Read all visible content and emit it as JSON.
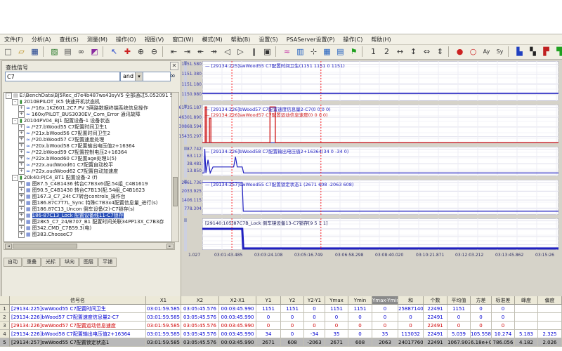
{
  "menu": {
    "items": [
      "文件(F)",
      "分析(A)",
      "查找(S)",
      "测量(M)",
      "操作(O)",
      "视图(V)",
      "窗口(W)",
      "模式(M)",
      "帮助(B)",
      "设置(S)",
      "PSAServer设置(P)",
      "操作(C)",
      "帮助(H)"
    ]
  },
  "toolbar": {
    "icons": [
      {
        "name": "new-file",
        "glyph": "□",
        "color": "#555"
      },
      {
        "name": "open-folder",
        "glyph": "▱",
        "color": "#b8860b"
      },
      {
        "name": "save",
        "glyph": "▦",
        "color": "#1a3c8c"
      },
      {
        "sep": true
      },
      {
        "name": "export",
        "glyph": "▨",
        "color": "#2a7a2a"
      },
      {
        "name": "print",
        "glyph": "▤",
        "color": "#555"
      },
      {
        "name": "search-binoculars",
        "glyph": "∞",
        "color": "#222"
      },
      {
        "name": "color-palette",
        "glyph": "◩",
        "color": "#8a2aa0"
      },
      {
        "sep": true
      },
      {
        "name": "cursor-pointer",
        "glyph": "↖",
        "color": "#2244cc"
      },
      {
        "name": "marker-add",
        "glyph": "✚",
        "color": "#cc2222"
      },
      {
        "name": "zoom-in",
        "glyph": "⊕",
        "color": "#333"
      },
      {
        "name": "zoom-out",
        "glyph": "⊖",
        "color": "#333"
      },
      {
        "sep": true
      },
      {
        "name": "cursor-left",
        "glyph": "⇤",
        "color": "#333"
      },
      {
        "name": "cursor-right",
        "glyph": "⇥",
        "color": "#333"
      },
      {
        "name": "step-back",
        "glyph": "↞",
        "color": "#333"
      },
      {
        "name": "step-forward",
        "glyph": "↠",
        "color": "#333"
      },
      {
        "name": "prev-point",
        "glyph": "◁",
        "color": "#333"
      },
      {
        "name": "next-point",
        "glyph": "▷",
        "color": "#333"
      },
      {
        "name": "pause",
        "glyph": "‖",
        "color": "#333"
      },
      {
        "name": "stop",
        "glyph": "▣",
        "color": "#333"
      },
      {
        "sep": true
      },
      {
        "name": "curve-tool",
        "glyph": "≈",
        "color": "#c020a0"
      },
      {
        "name": "bar-chart",
        "glyph": "▥",
        "color": "#2060c0"
      },
      {
        "name": "crosshair",
        "glyph": "⊹",
        "color": "#333"
      },
      {
        "name": "grid-view",
        "glyph": "▦",
        "color": "#2060c0"
      },
      {
        "name": "table-view",
        "glyph": "▤",
        "color": "#2060c0"
      },
      {
        "name": "flag",
        "glyph": "⚑",
        "color": "#20a020"
      },
      {
        "sep": true
      },
      {
        "name": "view-one",
        "glyph": "1",
        "color": "#333"
      },
      {
        "name": "view-two",
        "glyph": "2",
        "color": "#333"
      },
      {
        "name": "h-expand",
        "glyph": "↔",
        "color": "#333"
      },
      {
        "name": "v-expand",
        "glyph": "↕",
        "color": "#333"
      },
      {
        "name": "fit-width",
        "glyph": "⇔",
        "color": "#333"
      },
      {
        "name": "fit-height",
        "glyph": "⇕",
        "color": "#333"
      },
      {
        "sep": true
      },
      {
        "name": "record",
        "glyph": "●",
        "color": "#cc2222"
      },
      {
        "name": "record-outline",
        "glyph": "○",
        "color": "#cc2222"
      },
      {
        "name": "ay-tool",
        "glyph": "Ay",
        "color": "#333"
      },
      {
        "name": "sy-tool",
        "glyph": "Sy",
        "color": "#333"
      },
      {
        "sep": true
      },
      {
        "name": "analysis-blue",
        "glyph": "▙",
        "color": "#2040c0"
      },
      {
        "name": "analysis-black",
        "glyph": "▚",
        "color": "#222"
      },
      {
        "name": "analysis-red",
        "glyph": "▛",
        "color": "#c02020"
      },
      {
        "name": "analysis-green",
        "glyph": "▜",
        "color": "#20a020"
      }
    ]
  },
  "search": {
    "title": "查找信号",
    "field1": "C7",
    "operator": "and",
    "field2": "",
    "close_glyph": "✕",
    "find_glyph": "∞"
  },
  "tree": {
    "items": [
      {
        "level": 0,
        "icon": "book",
        "expand": "-",
        "text": "E:\\BenchData\\BJ5Rec_d7e4b487ws43syV5 全部通过5.052091 50520917 ~"
      },
      {
        "level": 1,
        "icon": "chip",
        "expand": "-",
        "text": "2010BPILOT_IK5 快速开机状态机"
      },
      {
        "level": 2,
        "icon": "sig",
        "expand": "+",
        "text": "/*16x.1K2601.2C7.PV 3两路数据终端系统信息操作"
      },
      {
        "level": 2,
        "icon": "sig",
        "expand": "+",
        "text": "160x/PILOT_BUS3030EV_Com_Error 通讯故障"
      },
      {
        "level": 1,
        "icon": "chip",
        "expand": "-",
        "text": "20104PV04_BJ1 配置设备-1 设备状态"
      },
      {
        "level": 2,
        "icon": "sig",
        "expand": "+",
        "text": "/*27.bWood55 C7配置时间卫生1"
      },
      {
        "level": 2,
        "icon": "sig",
        "expand": "+",
        "text": "/*21x.bWood56 C7配置时间卫生2"
      },
      {
        "level": 2,
        "icon": "sig",
        "expand": "+",
        "text": "/*20.bWood57 C7配置速度处理"
      },
      {
        "level": 2,
        "icon": "sig",
        "expand": "+",
        "text": "/*20x.bWood58 C7配置输出电压值2+16364"
      },
      {
        "level": 2,
        "icon": "sig",
        "expand": "+",
        "text": "/*22.bWood59 C7配置控制电压2+16364"
      },
      {
        "level": 2,
        "icon": "sig",
        "expand": "+",
        "text": "/*22x.bWood60 C7配置age处理1(5)"
      },
      {
        "level": 2,
        "icon": "sig",
        "expand": "+",
        "text": "/*22x.audWood61 C7配置自动校平"
      },
      {
        "level": 2,
        "icon": "sig",
        "expand": "+",
        "text": "/*22x.audWood62 C7配置自动加速度"
      },
      {
        "level": 1,
        "icon": "chip",
        "expand": "-",
        "text": "20k40:P(C4_BT1 配置设备-2 (f)"
      },
      {
        "level": 2,
        "icon": "tbl",
        "expand": "+",
        "text": "图87.5_C4B1436 转台C7B3x6(配.54组_C4B1619"
      },
      {
        "level": 2,
        "icon": "tbl",
        "expand": "+",
        "text": "图90.5_C4B1430 转台C7B13(配.54组_C4B1623"
      },
      {
        "level": 2,
        "icon": "tbl",
        "expand": "+",
        "text": "图167.3_C7_24t C7转台controls_操作台"
      },
      {
        "level": 2,
        "icon": "tbl",
        "expand": "+",
        "text": "图186.87C7T7L_Sync 特殊C7B3x4配置信息量_进行(s)"
      },
      {
        "level": 2,
        "icon": "tbl",
        "expand": "+",
        "text": "图186.87C13_Uncon 倒车设备(2)-C7锁存(s)"
      },
      {
        "level": 2,
        "icon": "tbl",
        "expand": "+",
        "selected": true,
        "text": "186-87C13_Lock 配置设备线11-C7锁存"
      },
      {
        "level": 2,
        "icon": "tbl",
        "expand": "+",
        "text": "图28K5_C7_24/B707_B1 配置时间关联34PP13X_C7B3存"
      },
      {
        "level": 2,
        "icon": "tbl",
        "expand": "+",
        "text": "图342.CMD_C7B59.3(电)"
      },
      {
        "level": 2,
        "icon": "tbl",
        "expand": "+",
        "text": "图383.ChooseC7"
      }
    ]
  },
  "bottom_tabs": {
    "items": [
      "自动",
      "重叠",
      "光标",
      "纵向",
      "图层",
      "平铺"
    ]
  },
  "xaxis": {
    "labels": [
      "1.027",
      "03:01:43.485",
      "03:03:24.108",
      "03:05:16.749",
      "03:06:58.298",
      "03:08:40.020",
      "03:10:21.871",
      "03:12:03.212",
      "03:13:45.862",
      "03:15:26"
    ]
  },
  "chart_data": [
    {
      "type": "line",
      "legends": [
        {
          "text": "— [29134:225]swWood55 C7配置时间卫生(1151 1151 0 1151)",
          "color": "#2020c0"
        }
      ],
      "y_ticks": [
        "1151.580",
        "1151.380",
        "1151.180",
        "1150.980"
      ],
      "ylim": [
        1150.844,
        1151.644
      ],
      "cursors": [
        0.083,
        0.333
      ],
      "series": [
        {
          "name": "swWood55",
          "color": "#2020c0",
          "width": 1.6,
          "points": [
            [
              0,
              1151
            ],
            [
              1,
              1151
            ]
          ]
        }
      ]
    },
    {
      "type": "line",
      "legends": [
        {
          "text": "— [29134:226]bWood57 C7配置速度信息量2-C7(0 0 0 0)",
          "color": "#2020c0"
        },
        {
          "text": "— [29134:226]swWood57 C7配置运动信息速度(0 0 0 0)",
          "color": "#d02020"
        }
      ],
      "y_ticks": [
        "61735.187",
        "46301.890",
        "30868.594",
        "15435.297"
      ],
      "ylim": [
        4938,
        66674
      ],
      "cursors": [
        0.083,
        0.333
      ],
      "series": [
        {
          "name": "bWood57",
          "color": "#2020c0",
          "width": 1,
          "points": [
            [
              0,
              4940
            ],
            [
              1,
              4940
            ]
          ]
        },
        {
          "name": "swWood57",
          "color": "#d02020",
          "width": 1.4,
          "points": [
            [
              0,
              4940
            ],
            [
              0.008,
              4940
            ],
            [
              0.008,
              63000
            ],
            [
              0.012,
              63000
            ],
            [
              0.012,
              4940
            ],
            [
              0.02,
              4940
            ],
            [
              0.02,
              45000
            ],
            [
              0.024,
              45000
            ],
            [
              0.024,
              4940
            ],
            [
              0.19,
              4940
            ],
            [
              0.19,
              63000
            ],
            [
              0.205,
              63000
            ],
            [
              0.205,
              4940
            ],
            [
              1,
              4940
            ]
          ]
        }
      ]
    },
    {
      "type": "line",
      "legends": [
        {
          "text": "— [29134:226]bWood58 C7配置输出电压值2+16364(34 0 -34 0)",
          "color": "#2020c0"
        }
      ],
      "y_ticks": [
        "87.742",
        "63.112",
        "38.481",
        "13.850"
      ],
      "ylim": [
        -2.9,
        95.62
      ],
      "cursors": [
        0.083,
        0.333
      ],
      "series": [
        {
          "name": "bWood58",
          "color": "#2020c0",
          "width": 1.2,
          "points": [
            [
              0,
              8
            ],
            [
              0.005,
              8
            ],
            [
              0.007,
              88
            ],
            [
              0.01,
              8
            ],
            [
              0.016,
              52
            ],
            [
              0.022,
              8
            ],
            [
              0.03,
              28
            ],
            [
              0.088,
              28
            ],
            [
              0.093,
              62
            ],
            [
              0.098,
              28
            ],
            [
              0.112,
              28
            ],
            [
              0.116,
              8
            ],
            [
              1,
              8
            ]
          ]
        }
      ]
    },
    {
      "type": "line",
      "legends": [
        {
          "text": "— [29134:257]swWood55 C7配置锁定状态1 (2671 608 -2063 608)",
          "color": "#2020c0"
        }
      ],
      "y_ticks": [
        "2661.736",
        "2033.925",
        "1406.115",
        "778.304"
      ],
      "ylim": [
        351.6,
        2862.6
      ],
      "cursors": [
        0.083,
        0.333
      ],
      "series": [
        {
          "name": "swWood55_lock",
          "color": "#2020c0",
          "width": 1.2,
          "points": [
            [
              0,
              2671
            ],
            [
              0.112,
              2671
            ],
            [
              0.115,
              608
            ],
            [
              1,
              608
            ]
          ]
        }
      ]
    },
    {
      "type": "digital",
      "legends": [
        {
          "text": "[29140:105]87C7B_Lock 倒车镜设备13-C7锁存[9 5 1 1]",
          "color": "#202060"
        }
      ],
      "y_ticks": [],
      "ylim": [
        0,
        1.5
      ],
      "cursors": [
        0.083,
        0.333
      ],
      "series": [
        {
          "name": "87C7B_Lock",
          "color": "#2020c0",
          "width": 3,
          "points": [
            [
              0,
              1
            ],
            [
              0.112,
              1
            ],
            [
              0.115,
              0.07
            ],
            [
              1,
              0.07
            ]
          ]
        }
      ]
    }
  ],
  "table": {
    "columns": [
      {
        "label": ""
      },
      {
        "label": "信号名"
      },
      {
        "label": "X1"
      },
      {
        "label": "X2"
      },
      {
        "label": "X2-X1"
      },
      {
        "label": "Y1"
      },
      {
        "label": "Y2"
      },
      {
        "label": "Y2-Y1"
      },
      {
        "label": "Ymax"
      },
      {
        "label": "Ymin"
      },
      {
        "label": "Ymax-Ymin",
        "selected": true
      },
      {
        "label": "和"
      },
      {
        "label": "个数"
      },
      {
        "label": "平均值"
      },
      {
        "label": "方差"
      },
      {
        "label": "标准差"
      },
      {
        "label": "峰度"
      },
      {
        "label": "偏度"
      }
    ],
    "rows": [
      {
        "num": "1",
        "color": "#0000d0",
        "cells": [
          "[29134:225]swWood55 C7配置时间卫生",
          "03:01:59.585",
          "03:05:45.576",
          "00:03:45.990",
          "1151",
          "1151",
          "0",
          "1151",
          "1151",
          "0",
          "25887140",
          "22491",
          "1151",
          "0",
          "0",
          "",
          ""
        ]
      },
      {
        "num": "2",
        "color": "#0000d0",
        "cells": [
          "[29134:226]bWood57 C7配置速度信息量2-C7",
          "03:01:59.585",
          "03:05:45.576",
          "00:03:45.990",
          "0",
          "0",
          "0",
          "0",
          "0",
          "0",
          "0",
          "22491",
          "0",
          "0",
          "0",
          "",
          ""
        ]
      },
      {
        "num": "3",
        "color": "#d00000",
        "cells": [
          "[29134:226]swWood57 C7配置运动信息速度",
          "03:01:59.585",
          "03:05:45.576",
          "00:03:45.990",
          "0",
          "0",
          "0",
          "0",
          "0",
          "0",
          "0",
          "22491",
          "0",
          "0",
          "0",
          "",
          ""
        ]
      },
      {
        "num": "4",
        "color": "#0000d0",
        "cells": [
          "[29134:226]bWood58 C7配置输出电压值2+16364",
          "03:01:59.585",
          "03:05:45.576",
          "00:03:45.990",
          "34",
          "0",
          "-34",
          "35",
          "0",
          "35",
          "113032",
          "22491",
          "5.039",
          "105.558",
          "10.274",
          "5.183",
          "2.325"
        ]
      },
      {
        "num": "5",
        "color": "#000000",
        "selected": true,
        "cells": [
          "[29134:257]swWood55 C7配置锁定状态1",
          "03:01:59.585",
          "03:05:45.576",
          "00:03:45.990",
          "2671",
          "608",
          "-2063",
          "2671",
          "608",
          "2063",
          "24017760",
          "22491",
          "1067.903",
          "6.18e+05",
          "786.056",
          "4.182",
          "2.026"
        ]
      }
    ]
  }
}
